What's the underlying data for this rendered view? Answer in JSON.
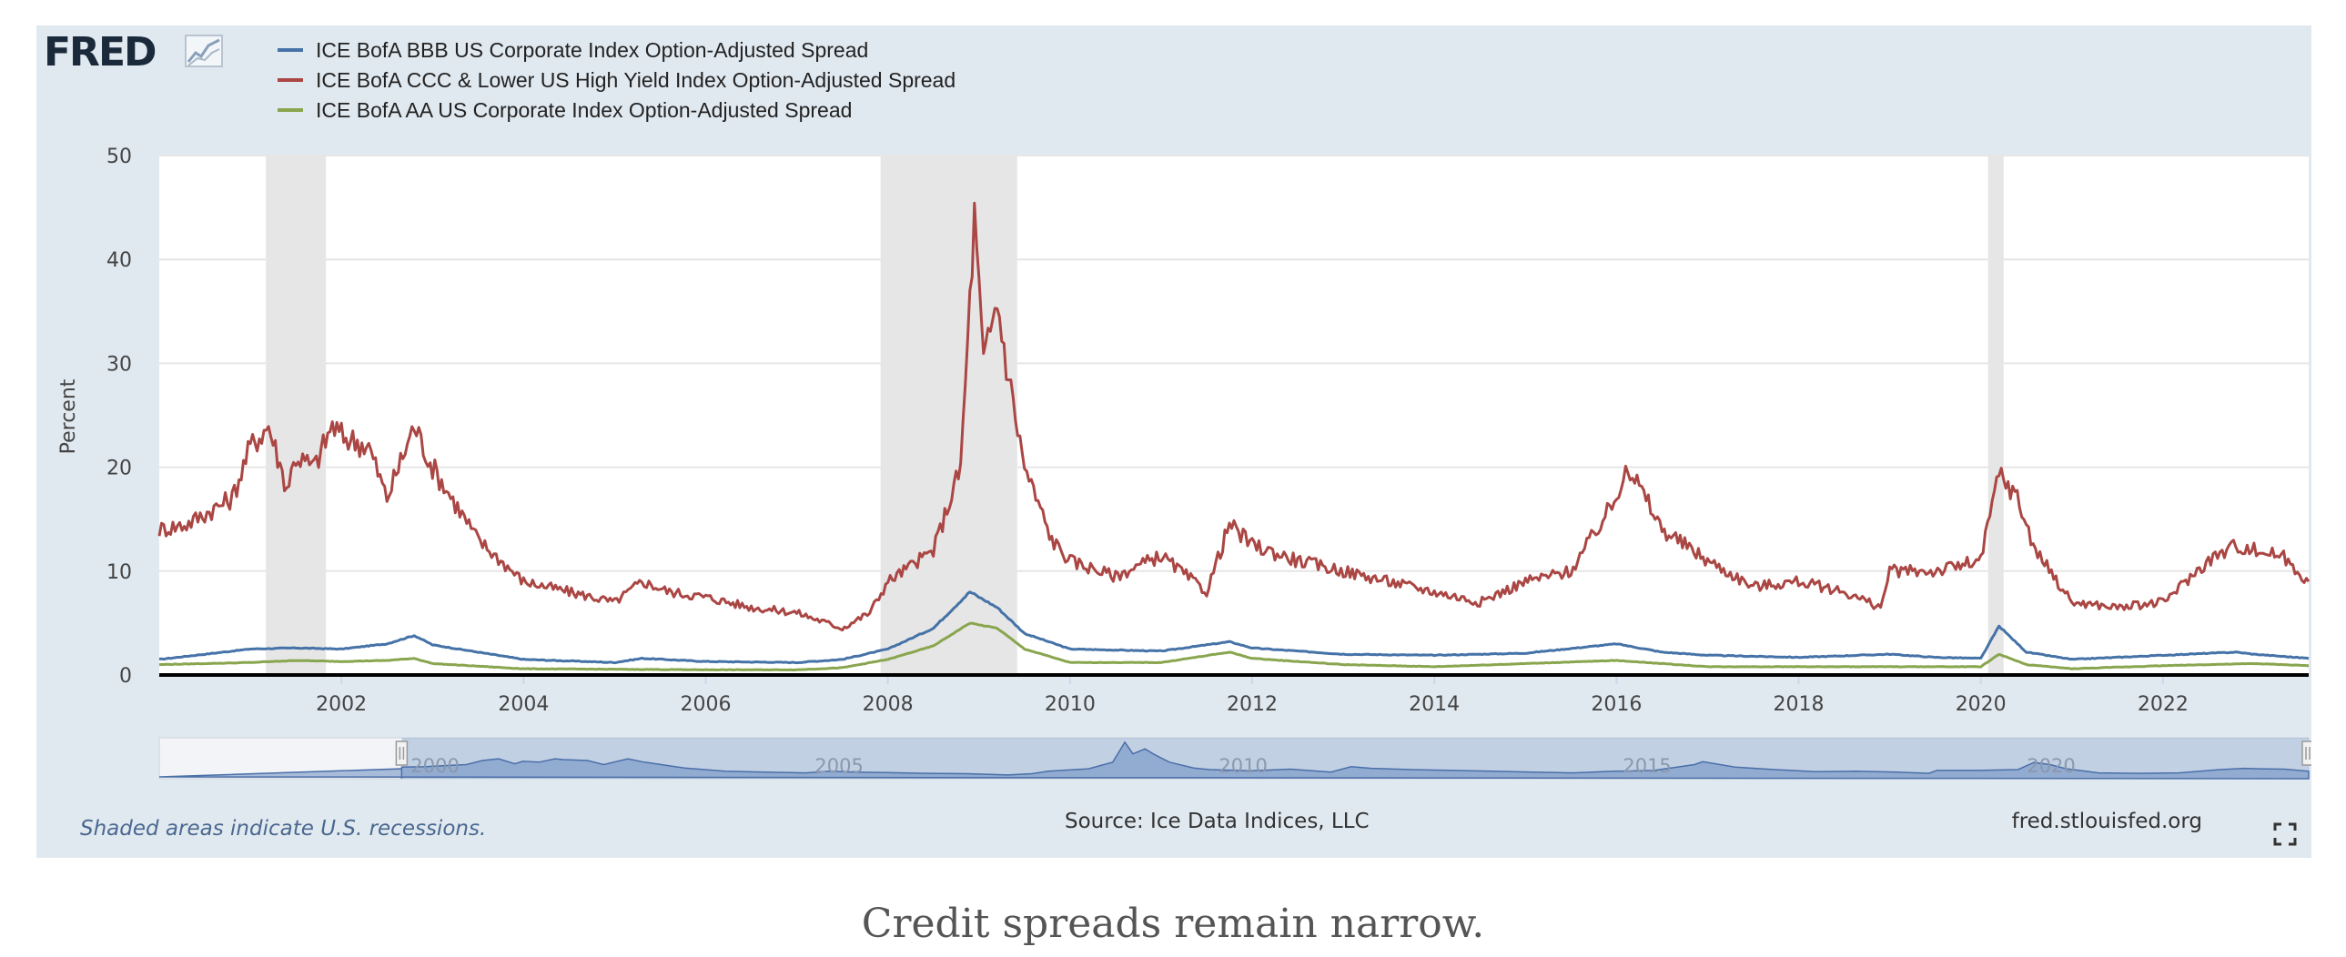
{
  "brand": {
    "logo_text": "FRED"
  },
  "footer": {
    "recession_note": "Shaded areas indicate U.S. recessions.",
    "source": "Source: Ice Data Indices, LLC",
    "site": "fred.stlouisfed.org"
  },
  "caption": "Credit spreads remain narrow.",
  "colors": {
    "panel_bg": "#e1e9f0",
    "plot_bg": "#ffffff",
    "recession": "#e6e6e6",
    "navigator": "#6b8cbf"
  },
  "chart_data": {
    "type": "line",
    "title": "",
    "xlabel": "",
    "ylabel": "Percent",
    "xlim": [
      2000.0,
      2023.6
    ],
    "ylim": [
      0,
      50
    ],
    "yticks": [
      "0",
      "10",
      "20",
      "30",
      "40",
      "50"
    ],
    "xticks": [
      "2002",
      "2004",
      "2006",
      "2008",
      "2010",
      "2012",
      "2014",
      "2016",
      "2018",
      "2020",
      "2022"
    ],
    "grid": true,
    "legend_position": "top-left",
    "recessions": [
      [
        2001.17,
        2001.83
      ],
      [
        2007.92,
        2009.42
      ],
      [
        2020.08,
        2020.25
      ]
    ],
    "navigator_ticks": [
      "2000",
      "2005",
      "2010",
      "2015",
      "2020"
    ],
    "navigator_range": [
      1997.0,
      2023.6
    ],
    "series": [
      {
        "name": "ICE BofA BBB US Corporate Index Option-Adjusted Spread",
        "color": "#4572a7",
        "x": [
          2000.0,
          2000.5,
          2001.0,
          2001.5,
          2002.0,
          2002.5,
          2002.8,
          2003.0,
          2003.5,
          2004.0,
          2005.0,
          2005.3,
          2006.0,
          2007.0,
          2007.5,
          2008.0,
          2008.5,
          2008.9,
          2009.2,
          2009.5,
          2010.0,
          2011.0,
          2011.75,
          2012.0,
          2013.0,
          2014.0,
          2015.0,
          2016.0,
          2016.5,
          2017.0,
          2018.0,
          2019.0,
          2019.5,
          2020.0,
          2020.2,
          2020.5,
          2021.0,
          2022.0,
          2022.8,
          2023.0,
          2023.6
        ],
        "y": [
          1.5,
          2.0,
          2.5,
          2.6,
          2.5,
          3.0,
          3.8,
          2.9,
          2.2,
          1.5,
          1.2,
          1.6,
          1.3,
          1.2,
          1.5,
          2.5,
          4.5,
          8.0,
          6.5,
          4.0,
          2.5,
          2.3,
          3.2,
          2.6,
          2.0,
          1.9,
          2.1,
          3.0,
          2.2,
          1.9,
          1.7,
          2.0,
          1.7,
          1.6,
          4.7,
          2.2,
          1.5,
          1.9,
          2.2,
          2.0,
          1.6
        ]
      },
      {
        "name": "ICE BofA CCC & Lower US High Yield Index Option-Adjusted Spread",
        "color": "#aa4643",
        "x": [
          2000.0,
          2000.3,
          2000.8,
          2001.0,
          2001.2,
          2001.4,
          2001.5,
          2001.7,
          2001.9,
          2002.0,
          2002.3,
          2002.5,
          2002.8,
          2003.0,
          2003.5,
          2004.0,
          2004.5,
          2005.0,
          2005.3,
          2005.6,
          2006.0,
          2006.5,
          2007.0,
          2007.5,
          2007.8,
          2008.0,
          2008.5,
          2008.8,
          2008.95,
          2009.05,
          2009.2,
          2009.3,
          2009.5,
          2009.8,
          2010.0,
          2010.5,
          2011.0,
          2011.5,
          2011.75,
          2012.0,
          2012.5,
          2013.0,
          2013.5,
          2014.0,
          2014.5,
          2015.0,
          2015.5,
          2016.0,
          2016.1,
          2016.5,
          2017.0,
          2017.5,
          2018.0,
          2018.5,
          2018.9,
          2019.0,
          2019.5,
          2020.0,
          2020.2,
          2020.4,
          2020.6,
          2021.0,
          2021.5,
          2022.0,
          2022.5,
          2022.8,
          2023.0,
          2023.3,
          2023.6
        ],
        "y": [
          14,
          14.5,
          17,
          22,
          24,
          18,
          21,
          20,
          24,
          23,
          22,
          17,
          24,
          20,
          13,
          9,
          8,
          7,
          9,
          8,
          7.5,
          6.5,
          6,
          4.5,
          6,
          9,
          12,
          20,
          44,
          30,
          36,
          30,
          20,
          13,
          11,
          9.5,
          11.5,
          8,
          14.5,
          12.5,
          11,
          10,
          9,
          8,
          7,
          9,
          10,
          17,
          20.5,
          14,
          11,
          8.5,
          9,
          8,
          6.5,
          10,
          10,
          11,
          19.5,
          17,
          12,
          7,
          6.5,
          7,
          11,
          12.5,
          12,
          11.5,
          9
        ]
      },
      {
        "name": "ICE BofA AA US Corporate Index Option-Adjusted Spread",
        "color": "#89a54e",
        "x": [
          2000.0,
          2001.0,
          2001.5,
          2002.0,
          2002.5,
          2002.8,
          2003.0,
          2004.0,
          2006.0,
          2007.0,
          2007.5,
          2008.0,
          2008.5,
          2008.9,
          2009.2,
          2009.5,
          2010.0,
          2011.0,
          2011.75,
          2012.0,
          2013.0,
          2014.0,
          2016.0,
          2017.0,
          2019.0,
          2020.0,
          2020.2,
          2020.5,
          2021.0,
          2022.0,
          2023.0,
          2023.6
        ],
        "y": [
          1.0,
          1.2,
          1.4,
          1.3,
          1.4,
          1.6,
          1.1,
          0.6,
          0.5,
          0.5,
          0.7,
          1.5,
          2.8,
          5.0,
          4.5,
          2.5,
          1.2,
          1.2,
          2.2,
          1.6,
          1.0,
          0.8,
          1.4,
          0.8,
          0.8,
          0.8,
          2.0,
          1.0,
          0.6,
          0.9,
          1.1,
          0.9
        ]
      }
    ]
  }
}
